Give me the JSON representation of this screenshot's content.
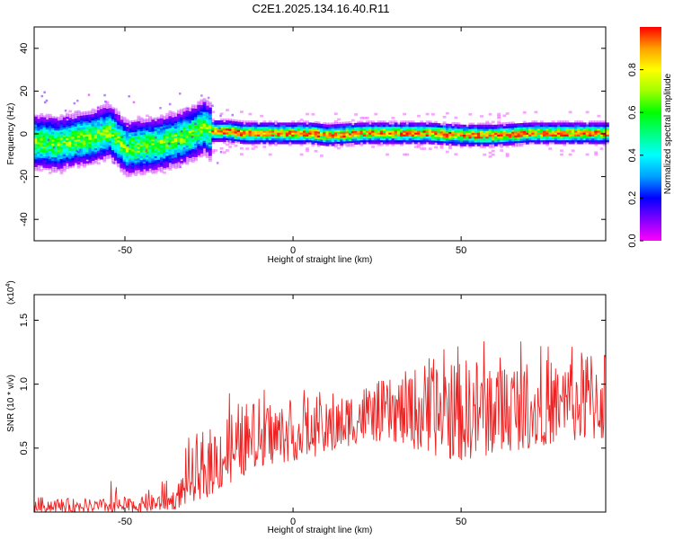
{
  "title": "C2E1.2025.134.16.40.R11",
  "chart_data": [
    {
      "type": "heatmap",
      "xlabel": "Height of straight line (km)",
      "ylabel": "Frequency (Hz)",
      "xlim": [
        -77,
        93
      ],
      "ylim": [
        -50,
        50
      ],
      "xticks": [
        "-50",
        "0",
        "50"
      ],
      "yticks": [
        "-40",
        "-20",
        "0",
        "20",
        "40"
      ],
      "colorbar": {
        "label": "Normalized spectral amplitude",
        "range": [
          0,
          1
        ],
        "ticks": [
          "0.0",
          "0.2",
          "0.4",
          "0.6",
          "0.8"
        ],
        "colormap": [
          "#ff00ff",
          "#8000ff",
          "#0000ff",
          "#00a0ff",
          "#00ffff",
          "#00ff80",
          "#00ff00",
          "#a0ff00",
          "#ffff00",
          "#ffa000",
          "#ff0000"
        ]
      },
      "ridge": {
        "x": [
          -77,
          -70,
          -65,
          -60,
          -55,
          -50,
          -45,
          -40,
          -35,
          -30,
          -27,
          -25,
          -20,
          -15,
          -10,
          -5,
          0,
          5,
          10,
          20,
          30,
          40,
          50,
          60,
          70,
          80,
          93
        ],
        "y": [
          -4,
          -5,
          -3,
          -2,
          1,
          -7,
          -6,
          -5,
          -3,
          0,
          3,
          1,
          1,
          0,
          0,
          0,
          0,
          0,
          -1,
          0,
          0,
          0,
          -1,
          -1,
          0,
          0,
          0
        ]
      },
      "grid": false
    },
    {
      "type": "line",
      "xlabel": "Height of straight line (km)",
      "ylabel": "SNR (10 * v/v)",
      "yscale_label": "(x10",
      "yscale_exp": "4",
      "yscale_close": ")",
      "xlim": [
        -77,
        93
      ],
      "ylim": [
        0,
        1.7
      ],
      "xticks": [
        "-50",
        "0",
        "50"
      ],
      "yticks": [
        "0.5",
        "1.0",
        "1.5"
      ],
      "line_color": "#ee2222",
      "envelope": {
        "x": [
          -77,
          -60,
          -45,
          -35,
          -30,
          -25,
          -20,
          -10,
          0,
          10,
          20,
          30,
          40,
          50,
          60,
          70,
          80,
          93
        ],
        "low": [
          0.0,
          0.0,
          0.0,
          0.02,
          0.08,
          0.12,
          0.2,
          0.35,
          0.4,
          0.45,
          0.55,
          0.55,
          0.45,
          0.4,
          0.45,
          0.5,
          0.55,
          0.55
        ],
        "high": [
          0.12,
          0.1,
          0.12,
          0.18,
          0.5,
          0.65,
          0.8,
          0.9,
          0.85,
          0.85,
          1.0,
          1.05,
          1.2,
          1.2,
          1.25,
          1.2,
          1.2,
          1.35
        ]
      },
      "grid": false
    }
  ]
}
